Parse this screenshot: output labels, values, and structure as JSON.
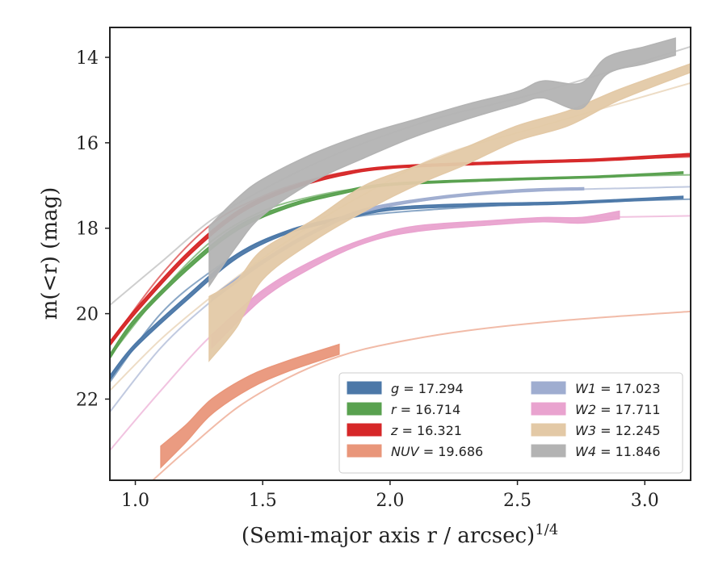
{
  "chart_data": {
    "type": "line",
    "xlabel": "(Semi-major axis r / arcsec)",
    "xlabel_sup": "1/4",
    "ylabel": "m(<r) (mag)",
    "xlim": [
      0.9,
      3.18
    ],
    "ylim": [
      23.9,
      13.3
    ],
    "y_inverted": true,
    "x_ticks": [
      "1.0",
      "1.5",
      "2.0",
      "2.5",
      "3.0"
    ],
    "y_ticks": [
      "14",
      "16",
      "18",
      "20",
      "22"
    ],
    "grid": false,
    "legend_position": "lower-right",
    "series": [
      {
        "name": "g = 17.294",
        "band": "g",
        "total": 17.294,
        "color": "#4c78a8",
        "model": [
          [
            0.9,
            21.6
          ],
          [
            1.1,
            20.0
          ],
          [
            1.3,
            19.0
          ],
          [
            1.5,
            18.3
          ],
          [
            1.7,
            17.95
          ],
          [
            1.9,
            17.7
          ],
          [
            2.2,
            17.55
          ],
          [
            2.6,
            17.42
          ],
          [
            3.18,
            17.32
          ]
        ],
        "band_upper": [
          [
            0.9,
            21.45
          ],
          [
            1.0,
            20.7
          ],
          [
            1.2,
            19.6
          ],
          [
            1.4,
            18.6
          ],
          [
            1.6,
            18.05
          ],
          [
            1.8,
            17.75
          ],
          [
            2.0,
            17.52
          ],
          [
            2.3,
            17.43
          ],
          [
            2.7,
            17.38
          ],
          [
            3.15,
            17.25
          ]
        ],
        "band_lower": [
          [
            0.9,
            21.55
          ],
          [
            1.0,
            20.8
          ],
          [
            1.2,
            19.7
          ],
          [
            1.4,
            18.7
          ],
          [
            1.6,
            18.12
          ],
          [
            1.8,
            17.82
          ],
          [
            2.0,
            17.58
          ],
          [
            2.3,
            17.49
          ],
          [
            2.7,
            17.43
          ],
          [
            3.15,
            17.3
          ]
        ]
      },
      {
        "name": "r = 16.714",
        "band": "r",
        "total": 16.714,
        "color": "#59a14f",
        "model": [
          [
            0.9,
            21.0
          ],
          [
            1.1,
            19.5
          ],
          [
            1.3,
            18.3
          ],
          [
            1.5,
            17.6
          ],
          [
            1.7,
            17.25
          ],
          [
            1.9,
            17.05
          ],
          [
            2.2,
            16.9
          ],
          [
            2.6,
            16.82
          ],
          [
            3.18,
            16.75
          ]
        ],
        "band_upper": [
          [
            0.9,
            20.95
          ],
          [
            1.0,
            20.1
          ],
          [
            1.2,
            18.9
          ],
          [
            1.4,
            17.95
          ],
          [
            1.6,
            17.45
          ],
          [
            1.8,
            17.15
          ],
          [
            2.0,
            16.95
          ],
          [
            2.4,
            16.85
          ],
          [
            2.8,
            16.78
          ],
          [
            3.15,
            16.68
          ]
        ],
        "band_lower": [
          [
            0.9,
            21.05
          ],
          [
            1.0,
            20.2
          ],
          [
            1.2,
            19.0
          ],
          [
            1.4,
            18.05
          ],
          [
            1.6,
            17.52
          ],
          [
            1.8,
            17.21
          ],
          [
            2.0,
            17.0
          ],
          [
            2.4,
            16.89
          ],
          [
            2.8,
            16.82
          ],
          [
            3.15,
            16.72
          ]
        ]
      },
      {
        "name": "z = 16.321",
        "band": "z",
        "total": 16.321,
        "color": "#d62728",
        "model": [
          [
            0.9,
            20.7
          ],
          [
            1.1,
            19.1
          ],
          [
            1.3,
            17.9
          ],
          [
            1.5,
            17.25
          ],
          [
            1.7,
            16.85
          ],
          [
            1.9,
            16.62
          ],
          [
            2.2,
            16.5
          ],
          [
            2.6,
            16.42
          ],
          [
            3.18,
            16.33
          ]
        ],
        "band_upper": [
          [
            0.9,
            20.65
          ],
          [
            1.0,
            19.9
          ],
          [
            1.2,
            18.6
          ],
          [
            1.4,
            17.6
          ],
          [
            1.6,
            17.05
          ],
          [
            1.8,
            16.72
          ],
          [
            2.0,
            16.55
          ],
          [
            2.4,
            16.45
          ],
          [
            2.8,
            16.38
          ],
          [
            3.18,
            16.25
          ]
        ],
        "band_lower": [
          [
            0.9,
            20.75
          ],
          [
            1.0,
            20.0
          ],
          [
            1.2,
            18.7
          ],
          [
            1.4,
            17.7
          ],
          [
            1.6,
            17.12
          ],
          [
            1.8,
            16.78
          ],
          [
            2.0,
            16.6
          ],
          [
            2.4,
            16.5
          ],
          [
            2.8,
            16.43
          ],
          [
            3.18,
            16.31
          ]
        ]
      },
      {
        "name": "NUV = 19.686",
        "band": "NUV",
        "total": 19.686,
        "color": "#e9967a",
        "model": [
          [
            1.05,
            24.0
          ],
          [
            1.2,
            23.2
          ],
          [
            1.4,
            22.2
          ],
          [
            1.6,
            21.5
          ],
          [
            1.8,
            21.0
          ],
          [
            2.0,
            20.7
          ],
          [
            2.3,
            20.4
          ],
          [
            2.7,
            20.15
          ],
          [
            3.18,
            19.95
          ]
        ],
        "band_upper": [
          [
            1.1,
            23.1
          ],
          [
            1.2,
            22.6
          ],
          [
            1.3,
            22.0
          ],
          [
            1.45,
            21.45
          ],
          [
            1.6,
            21.1
          ],
          [
            1.8,
            20.72
          ]
        ],
        "band_lower": [
          [
            1.1,
            23.6
          ],
          [
            1.2,
            23.0
          ],
          [
            1.3,
            22.35
          ],
          [
            1.45,
            21.75
          ],
          [
            1.6,
            21.35
          ],
          [
            1.8,
            20.95
          ]
        ]
      },
      {
        "name": "W1 = 17.023",
        "band": "W1",
        "total": 17.023,
        "color": "#9fadd0",
        "model": [
          [
            0.9,
            22.3
          ],
          [
            1.1,
            20.8
          ],
          [
            1.3,
            19.7
          ],
          [
            1.5,
            18.8
          ],
          [
            1.7,
            18.1
          ],
          [
            1.9,
            17.6
          ],
          [
            2.2,
            17.3
          ],
          [
            2.6,
            17.12
          ],
          [
            3.18,
            17.03
          ]
        ],
        "band_upper": [
          [
            1.3,
            19.6
          ],
          [
            1.5,
            18.75
          ],
          [
            1.7,
            18.05
          ],
          [
            1.9,
            17.55
          ],
          [
            2.2,
            17.25
          ],
          [
            2.5,
            17.1
          ],
          [
            2.76,
            17.05
          ]
        ],
        "band_lower": [
          [
            1.3,
            19.7
          ],
          [
            1.5,
            18.83
          ],
          [
            1.7,
            18.12
          ],
          [
            1.9,
            17.62
          ],
          [
            2.2,
            17.3
          ],
          [
            2.5,
            17.15
          ],
          [
            2.76,
            17.1
          ]
        ]
      },
      {
        "name": "W2 = 17.711",
        "band": "W2",
        "total": 17.711,
        "color": "#e9a3cf",
        "model": [
          [
            0.9,
            23.2
          ],
          [
            1.1,
            21.8
          ],
          [
            1.3,
            20.5
          ],
          [
            1.5,
            19.5
          ],
          [
            1.7,
            18.8
          ],
          [
            1.9,
            18.3
          ],
          [
            2.2,
            17.95
          ],
          [
            2.6,
            17.78
          ],
          [
            3.18,
            17.71
          ]
        ],
        "band_upper": [
          [
            1.3,
            20.5
          ],
          [
            1.5,
            19.45
          ],
          [
            1.7,
            18.75
          ],
          [
            1.9,
            18.25
          ],
          [
            2.1,
            17.95
          ],
          [
            2.4,
            17.82
          ],
          [
            2.6,
            17.75
          ],
          [
            2.75,
            17.75
          ],
          [
            2.9,
            17.6
          ]
        ],
        "band_lower": [
          [
            1.3,
            20.8
          ],
          [
            1.5,
            19.65
          ],
          [
            1.7,
            18.9
          ],
          [
            1.9,
            18.35
          ],
          [
            2.1,
            18.08
          ],
          [
            2.4,
            17.92
          ],
          [
            2.6,
            17.85
          ],
          [
            2.75,
            17.88
          ],
          [
            2.9,
            17.78
          ]
        ]
      },
      {
        "name": "W3 = 12.245",
        "band": "W3",
        "total": 12.245,
        "color": "#e3c9a6",
        "model": [
          [
            0.9,
            21.8
          ],
          [
            1.1,
            20.6
          ],
          [
            1.3,
            19.6
          ],
          [
            1.5,
            18.7
          ],
          [
            1.7,
            17.9
          ],
          [
            1.9,
            17.2
          ],
          [
            2.2,
            16.3
          ],
          [
            2.6,
            15.6
          ],
          [
            3.18,
            14.6
          ]
        ],
        "band_upper": [
          [
            1.29,
            19.6
          ],
          [
            1.4,
            19.2
          ],
          [
            1.5,
            18.5
          ],
          [
            1.7,
            17.8
          ],
          [
            1.9,
            17.0
          ],
          [
            2.1,
            16.55
          ],
          [
            2.3,
            16.1
          ],
          [
            2.5,
            15.6
          ],
          [
            2.7,
            15.25
          ],
          [
            2.9,
            14.75
          ],
          [
            3.18,
            14.15
          ]
        ],
        "band_lower": [
          [
            1.29,
            21.1
          ],
          [
            1.4,
            20.3
          ],
          [
            1.5,
            19.2
          ],
          [
            1.7,
            18.3
          ],
          [
            1.9,
            17.6
          ],
          [
            2.1,
            17.0
          ],
          [
            2.3,
            16.5
          ],
          [
            2.5,
            15.95
          ],
          [
            2.7,
            15.6
          ],
          [
            2.9,
            15.0
          ],
          [
            3.18,
            14.35
          ]
        ]
      },
      {
        "name": "W4 = 11.846",
        "band": "W4",
        "total": 11.846,
        "color": "#b3b3b3",
        "model": [
          [
            0.9,
            19.8
          ],
          [
            1.1,
            18.8
          ],
          [
            1.3,
            17.8
          ],
          [
            1.5,
            17.1
          ],
          [
            1.7,
            16.5
          ],
          [
            1.9,
            16.0
          ],
          [
            2.2,
            15.4
          ],
          [
            2.6,
            14.8
          ],
          [
            3.18,
            13.75
          ]
        ],
        "band_upper": [
          [
            1.29,
            17.95
          ],
          [
            1.4,
            17.3
          ],
          [
            1.5,
            16.85
          ],
          [
            1.7,
            16.25
          ],
          [
            1.9,
            15.8
          ],
          [
            2.1,
            15.45
          ],
          [
            2.3,
            15.1
          ],
          [
            2.5,
            14.8
          ],
          [
            2.6,
            14.55
          ],
          [
            2.75,
            14.6
          ],
          [
            2.85,
            14.0
          ],
          [
            3.0,
            13.75
          ],
          [
            3.12,
            13.55
          ]
        ],
        "band_lower": [
          [
            1.29,
            19.35
          ],
          [
            1.4,
            18.4
          ],
          [
            1.5,
            17.7
          ],
          [
            1.7,
            16.9
          ],
          [
            1.9,
            16.35
          ],
          [
            2.1,
            15.85
          ],
          [
            2.3,
            15.45
          ],
          [
            2.5,
            15.1
          ],
          [
            2.6,
            14.95
          ],
          [
            2.75,
            15.2
          ],
          [
            2.85,
            14.4
          ],
          [
            3.0,
            14.15
          ],
          [
            3.12,
            13.95
          ]
        ]
      }
    ]
  }
}
